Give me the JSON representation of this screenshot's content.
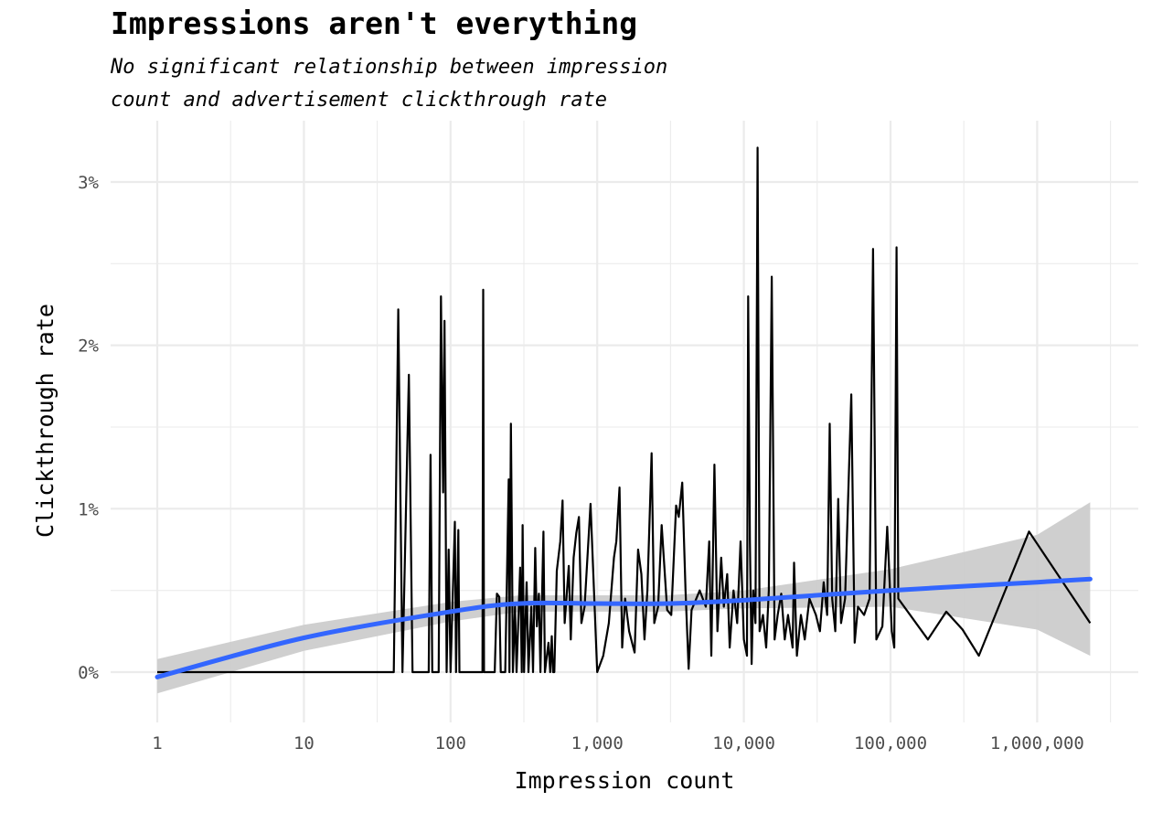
{
  "chart_data": {
    "type": "line",
    "title": "Impressions aren't everything",
    "subtitle_lines": [
      "No significant relationship between impression",
      "count and advertisement clickthrough rate"
    ],
    "xlabel": "Impression count",
    "ylabel": "Clickthrough rate",
    "x_scale": "log10",
    "xlim": [
      0.5,
      5000000
    ],
    "ylim": [
      -0.3,
      3.3
    ],
    "x_ticks": [
      {
        "value": 1,
        "label": "1"
      },
      {
        "value": 10,
        "label": "10"
      },
      {
        "value": 100,
        "label": "100"
      },
      {
        "value": 1000,
        "label": "1,000"
      },
      {
        "value": 10000,
        "label": "10,000"
      },
      {
        "value": 100000,
        "label": "100,000"
      },
      {
        "value": 1000000,
        "label": "1,000,000"
      }
    ],
    "y_ticks": [
      {
        "value": 0,
        "label": "0%"
      },
      {
        "value": 1,
        "label": "1%"
      },
      {
        "value": 2,
        "label": "2%"
      },
      {
        "value": 3,
        "label": "3%"
      }
    ],
    "grid": true,
    "colors": {
      "raw_line": "#000000",
      "smooth_line": "#3366ff",
      "ribbon": "#cccccc",
      "grid": "#ebebeb"
    },
    "series": [
      {
        "kind": "raw",
        "points": [
          [
            1,
            0
          ],
          [
            41,
            0
          ],
          [
            44,
            2.22
          ],
          [
            47,
            0
          ],
          [
            52,
            1.82
          ],
          [
            55,
            0
          ],
          [
            71,
            0
          ],
          [
            73,
            1.33
          ],
          [
            75,
            0
          ],
          [
            83,
            0
          ],
          [
            86,
            2.3
          ],
          [
            89,
            1.1
          ],
          [
            91,
            2.15
          ],
          [
            94,
            0
          ],
          [
            97,
            0.75
          ],
          [
            100,
            0
          ],
          [
            107,
            0.92
          ],
          [
            109,
            0
          ],
          [
            113,
            0.87
          ],
          [
            115,
            0
          ],
          [
            165,
            0
          ],
          [
            167,
            2.34
          ],
          [
            169,
            0
          ],
          [
            200,
            0
          ],
          [
            207,
            0.48
          ],
          [
            215,
            0.46
          ],
          [
            220,
            0
          ],
          [
            236,
            0
          ],
          [
            249,
            1.18
          ],
          [
            252,
            0
          ],
          [
            258,
            1.52
          ],
          [
            262,
            0.8
          ],
          [
            266,
            0
          ],
          [
            275,
            0.4
          ],
          [
            282,
            0
          ],
          [
            298,
            0.64
          ],
          [
            306,
            0
          ],
          [
            310,
            0.9
          ],
          [
            317,
            0
          ],
          [
            330,
            0.55
          ],
          [
            340,
            0
          ],
          [
            355,
            0.4
          ],
          [
            365,
            0
          ],
          [
            378,
            0.76
          ],
          [
            388,
            0.28
          ],
          [
            400,
            0.48
          ],
          [
            410,
            0
          ],
          [
            430,
            0.86
          ],
          [
            440,
            0
          ],
          [
            465,
            0.18
          ],
          [
            478,
            0
          ],
          [
            490,
            0.22
          ],
          [
            500,
            0
          ],
          [
            510,
            0
          ],
          [
            530,
            0.62
          ],
          [
            560,
            0.8
          ],
          [
            580,
            1.05
          ],
          [
            600,
            0.3
          ],
          [
            640,
            0.65
          ],
          [
            660,
            0.2
          ],
          [
            690,
            0.7
          ],
          [
            720,
            0.85
          ],
          [
            750,
            0.95
          ],
          [
            780,
            0.3
          ],
          [
            820,
            0.4
          ],
          [
            900,
            1.03
          ],
          [
            1000,
            0
          ],
          [
            1100,
            0.1
          ],
          [
            1200,
            0.3
          ],
          [
            1300,
            0.7
          ],
          [
            1350,
            0.8
          ],
          [
            1420,
            1.13
          ],
          [
            1480,
            0.15
          ],
          [
            1550,
            0.45
          ],
          [
            1650,
            0.25
          ],
          [
            1800,
            0.12
          ],
          [
            1900,
            0.75
          ],
          [
            2000,
            0.6
          ],
          [
            2100,
            0.2
          ],
          [
            2200,
            0.5
          ],
          [
            2350,
            1.34
          ],
          [
            2450,
            0.3
          ],
          [
            2600,
            0.4
          ],
          [
            2750,
            0.9
          ],
          [
            3000,
            0.38
          ],
          [
            3200,
            0.35
          ],
          [
            3450,
            1.02
          ],
          [
            3600,
            0.95
          ],
          [
            3800,
            1.16
          ],
          [
            4000,
            0.5
          ],
          [
            4200,
            0.02
          ],
          [
            4400,
            0.38
          ],
          [
            5000,
            0.5
          ],
          [
            5500,
            0.4
          ],
          [
            5800,
            0.8
          ],
          [
            6000,
            0.1
          ],
          [
            6300,
            1.27
          ],
          [
            6600,
            0.25
          ],
          [
            7000,
            0.7
          ],
          [
            7300,
            0.4
          ],
          [
            7700,
            0.6
          ],
          [
            8000,
            0.15
          ],
          [
            8500,
            0.5
          ],
          [
            9000,
            0.3
          ],
          [
            9500,
            0.8
          ],
          [
            10000,
            0.2
          ],
          [
            10500,
            0.1
          ],
          [
            10700,
            2.3
          ],
          [
            11000,
            0.8
          ],
          [
            11300,
            0.05
          ],
          [
            11600,
            0.5
          ],
          [
            12000,
            0.3
          ],
          [
            12400,
            3.21
          ],
          [
            12800,
            0.25
          ],
          [
            13500,
            0.35
          ],
          [
            14200,
            0.15
          ],
          [
            14800,
            0.5
          ],
          [
            15500,
            2.42
          ],
          [
            16200,
            0.2
          ],
          [
            17000,
            0.35
          ],
          [
            18000,
            0.48
          ],
          [
            19000,
            0.2
          ],
          [
            20000,
            0.35
          ],
          [
            21500,
            0.15
          ],
          [
            22000,
            0.67
          ],
          [
            23000,
            0.1
          ],
          [
            24500,
            0.35
          ],
          [
            26000,
            0.2
          ],
          [
            28000,
            0.45
          ],
          [
            31000,
            0.35
          ],
          [
            33000,
            0.25
          ],
          [
            35000,
            0.55
          ],
          [
            37000,
            0.35
          ],
          [
            38500,
            1.52
          ],
          [
            40000,
            0.45
          ],
          [
            42000,
            0.25
          ],
          [
            44000,
            1.06
          ],
          [
            46000,
            0.3
          ],
          [
            49000,
            0.45
          ],
          [
            54000,
            1.7
          ],
          [
            57000,
            0.18
          ],
          [
            60000,
            0.4
          ],
          [
            66000,
            0.35
          ],
          [
            72000,
            0.45
          ],
          [
            76000,
            2.59
          ],
          [
            80000,
            0.2
          ],
          [
            88000,
            0.28
          ],
          [
            95000,
            0.89
          ],
          [
            102000,
            0.25
          ],
          [
            106000,
            0.15
          ],
          [
            110000,
            2.6
          ],
          [
            113000,
            0.45
          ],
          [
            180000,
            0.2
          ],
          [
            240000,
            0.37
          ],
          [
            310000,
            0.26
          ],
          [
            400000,
            0.1
          ],
          [
            880000,
            0.86
          ],
          [
            2300000,
            0.3
          ]
        ]
      },
      {
        "kind": "smooth",
        "points": [
          [
            1,
            -0.03
          ],
          [
            10,
            0.21
          ],
          [
            100,
            0.37
          ],
          [
            300,
            0.42
          ],
          [
            1000,
            0.42
          ],
          [
            3000,
            0.42
          ],
          [
            10000,
            0.44
          ],
          [
            100000,
            0.5
          ],
          [
            1000000,
            0.55
          ],
          [
            2300000,
            0.57
          ]
        ],
        "ribbon_upper": [
          0.08,
          0.29,
          0.43,
          0.47,
          0.47,
          0.47,
          0.5,
          0.63,
          0.84,
          1.04
        ],
        "ribbon_lower": [
          -0.13,
          0.13,
          0.31,
          0.37,
          0.37,
          0.37,
          0.39,
          0.4,
          0.26,
          0.1
        ]
      }
    ]
  }
}
